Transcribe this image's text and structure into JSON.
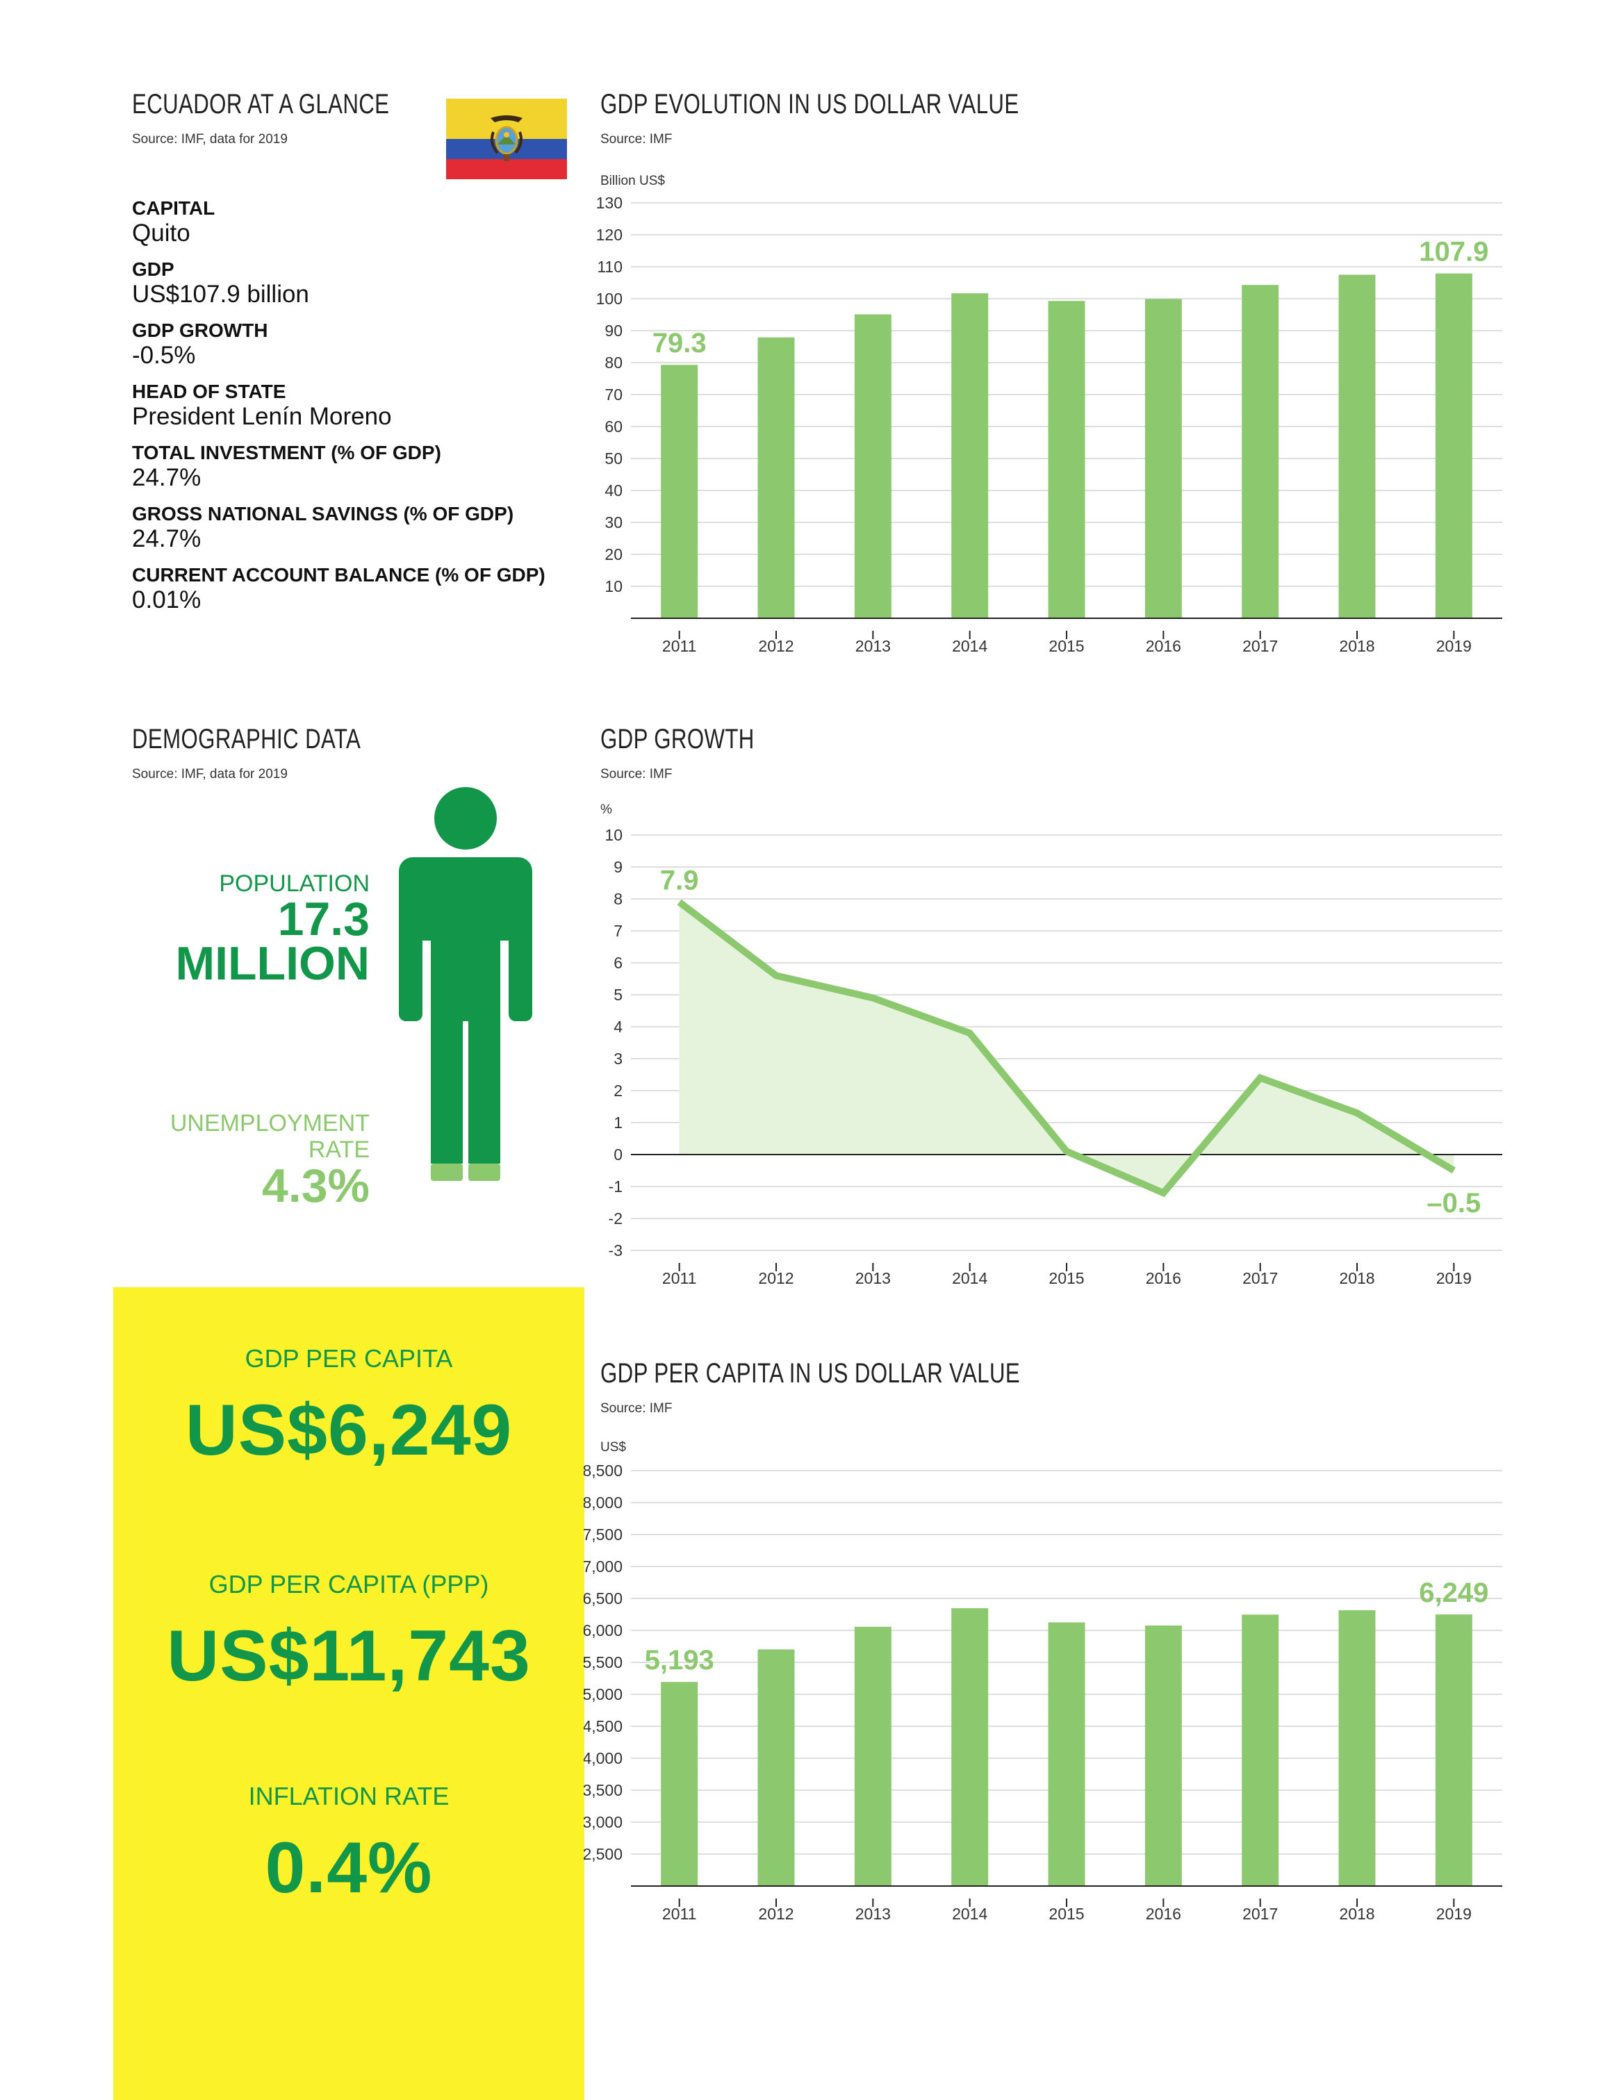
{
  "glance": {
    "title": "ECUADOR AT A GLANCE",
    "source": "Source: IMF, data for 2019",
    "facts": [
      {
        "label": "CAPITAL",
        "value": "Quito"
      },
      {
        "label": "GDP",
        "value": "US$107.9 billion"
      },
      {
        "label": "GDP GROWTH",
        "value": "-0.5%"
      },
      {
        "label": "HEAD OF STATE",
        "value": "President Lenín Moreno"
      },
      {
        "label": "TOTAL INVESTMENT (% OF GDP)",
        "value": "24.7%"
      },
      {
        "label": "GROSS NATIONAL SAVINGS (% OF GDP)",
        "value": "24.7%"
      },
      {
        "label": "CURRENT ACCOUNT BALANCE (% OF GDP)",
        "value": "0.01%"
      }
    ]
  },
  "demographic": {
    "title": "DEMOGRAPHIC DATA",
    "source": "Source: IMF, data for 2019",
    "population_label": "POPULATION",
    "population_value": "17.3",
    "population_unit": "MILLION",
    "unemployment_label_1": "UNEMPLOYMENT",
    "unemployment_label_2": "RATE",
    "unemployment_value": "4.3%"
  },
  "highlights": {
    "gdp_per_capita_label": "GDP PER CAPITA",
    "gdp_per_capita_value": "US$6,249",
    "gdp_per_capita_ppp_label": "GDP PER CAPITA (PPP)",
    "gdp_per_capita_ppp_value": "US$11,743",
    "inflation_label": "INFLATION RATE",
    "inflation_value": "0.4%"
  },
  "colors": {
    "bar": "#8cc86d",
    "line": "#8cc86d",
    "area": "#e5f2dc",
    "dark_green": "#11964a",
    "light_green": "#8cc86d",
    "yellow": "#fcf22a",
    "grid": "#d4d4d4"
  },
  "chart_data": [
    {
      "id": "gdp",
      "type": "bar",
      "title": "GDP EVOLUTION IN US DOLLAR VALUE",
      "source": "Source: IMF",
      "ylabel": "Billion US$",
      "categories": [
        "2011",
        "2012",
        "2013",
        "2014",
        "2015",
        "2016",
        "2017",
        "2018",
        "2019"
      ],
      "values": [
        79.3,
        87.9,
        95.1,
        101.7,
        99.3,
        99.9,
        104.3,
        107.5,
        107.9
      ],
      "ylim": [
        0,
        130
      ],
      "yticks": [
        10,
        20,
        30,
        40,
        50,
        60,
        70,
        80,
        90,
        100,
        110,
        120,
        130
      ],
      "ytick_labels": [
        "10",
        "20",
        "30",
        "40",
        "50",
        "60",
        "70",
        "80",
        "90",
        "100",
        "110",
        "120",
        "130"
      ],
      "annotations": [
        {
          "index": 0,
          "text": "79.3"
        },
        {
          "index": 8,
          "text": "107.9"
        }
      ],
      "grid": true
    },
    {
      "id": "growth",
      "type": "line",
      "title": "GDP GROWTH",
      "source": "Source: IMF",
      "ylabel": "%",
      "categories": [
        "2011",
        "2012",
        "2013",
        "2014",
        "2015",
        "2016",
        "2017",
        "2018",
        "2019"
      ],
      "values": [
        7.9,
        5.6,
        4.9,
        3.8,
        0.1,
        -1.2,
        2.4,
        1.3,
        -0.5
      ],
      "ylim": [
        -3,
        10
      ],
      "yticks": [
        -3,
        -2,
        -1,
        0,
        1,
        2,
        3,
        4,
        5,
        6,
        7,
        8,
        9,
        10
      ],
      "ytick_labels": [
        "-3",
        "-2",
        "-1",
        "0",
        "1",
        "2",
        "3",
        "4",
        "5",
        "6",
        "7",
        "8",
        "9",
        "10"
      ],
      "annotations": [
        {
          "index": 0,
          "text": "7.9"
        },
        {
          "index": 8,
          "text": "–0.5"
        }
      ],
      "grid": true
    },
    {
      "id": "percap",
      "type": "bar",
      "title": "GDP PER CAPITA IN US DOLLAR VALUE",
      "source": "Source: IMF",
      "ylabel": "US$",
      "categories": [
        "2011",
        "2012",
        "2013",
        "2014",
        "2015",
        "2016",
        "2017",
        "2018",
        "2019"
      ],
      "values": [
        5193,
        5702,
        6057,
        6347,
        6125,
        6076,
        6247,
        6316,
        6249
      ],
      "ylim": [
        2000,
        8500
      ],
      "yticks": [
        2500,
        3000,
        3500,
        4000,
        4500,
        5000,
        5500,
        6000,
        6500,
        7000,
        7500,
        8000,
        8500
      ],
      "ytick_labels": [
        "2,500",
        "3,000",
        "3,500",
        "4,000",
        "4,500",
        "5,000",
        "5,500",
        "6,000",
        "6,500",
        "7,000",
        "7,500",
        "8,000",
        "8,500"
      ],
      "annotations": [
        {
          "index": 0,
          "text": "5,193"
        },
        {
          "index": 8,
          "text": "6,249"
        }
      ],
      "grid": true
    }
  ]
}
